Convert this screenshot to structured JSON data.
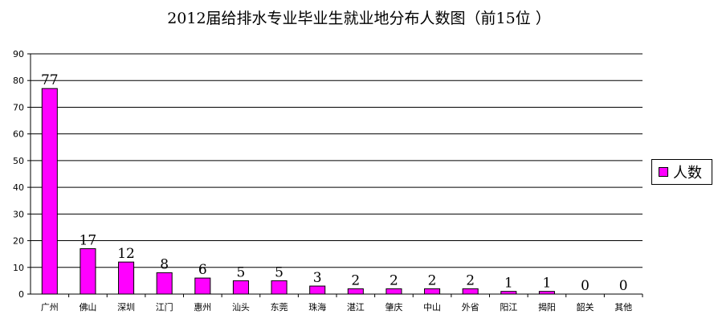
{
  "chart_data": {
    "type": "bar",
    "title": "2012届给排水专业毕业生就业地分布人数图（前15位 ）",
    "xlabel": "",
    "ylabel": "",
    "ylim": [
      0,
      90
    ],
    "yticks": [
      0,
      10,
      20,
      30,
      40,
      50,
      60,
      70,
      80,
      90
    ],
    "grid": true,
    "legend": "right",
    "categories": [
      "广州",
      "佛山",
      "深圳",
      "江门",
      "惠州",
      "汕头",
      "东莞",
      "珠海",
      "湛江",
      "肇庆",
      "中山",
      "外省",
      "阳江",
      "揭阳",
      "韶关",
      "其他"
    ],
    "series": [
      {
        "name": "人数",
        "color": "#ff00ff",
        "values": [
          77,
          17,
          12,
          8,
          6,
          5,
          5,
          3,
          2,
          2,
          2,
          2,
          1,
          1,
          0,
          0
        ]
      }
    ]
  }
}
